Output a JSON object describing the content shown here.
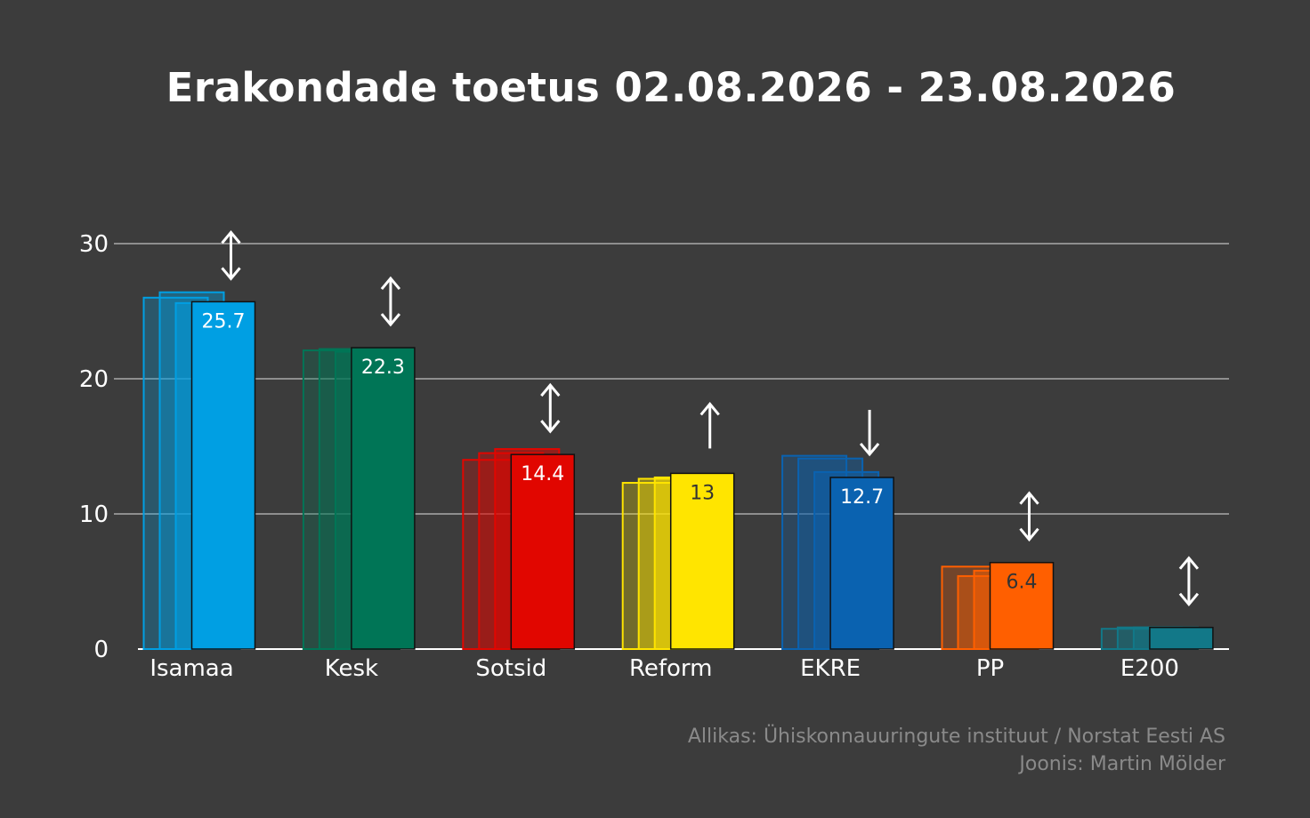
{
  "chart_data": {
    "type": "bar",
    "title": "Erakondade toetus 02.08.2026 - 23.08.2026",
    "xlabel": "",
    "ylabel": "",
    "ylim": [
      0,
      30
    ],
    "yticks": [
      "0",
      "10",
      "20",
      "30"
    ],
    "grid": true,
    "categories": [
      "Isamaa",
      "Kesk",
      "Sotsid",
      "Reform",
      "EKRE",
      "PP",
      "E200"
    ],
    "colors": [
      "#009fe3",
      "#007556",
      "#e10600",
      "#ffe500",
      "#0a62b0",
      "#ff5f00",
      "#127888"
    ],
    "series": [
      {
        "values": [
          26.0,
          22.1,
          14.0,
          12.3,
          14.3,
          6.1,
          1.5
        ]
      },
      {
        "values": [
          26.4,
          22.2,
          14.5,
          12.6,
          14.1,
          5.4,
          1.6
        ]
      },
      {
        "values": [
          25.6,
          22.0,
          14.8,
          12.7,
          13.1,
          5.8,
          1.6
        ]
      },
      {
        "values": [
          25.7,
          22.3,
          14.4,
          13.0,
          12.7,
          6.4,
          1.6
        ]
      }
    ],
    "data_labels": [
      "25.7",
      "22.3",
      "14.4",
      "13",
      "12.7",
      "6.4",
      ""
    ],
    "data_label_colors": [
      "#ffffff",
      "#ffffff",
      "#ffffff",
      "#333333",
      "#ffffff",
      "#333333",
      "#ffffff"
    ],
    "trend": [
      "both",
      "both",
      "both",
      "up",
      "down",
      "both",
      "both"
    ]
  },
  "credits": {
    "source": "Allikas: Ühiskonnauuringute instituut / Norstat Eesti AS",
    "author": "Joonis: Martin Mölder"
  }
}
